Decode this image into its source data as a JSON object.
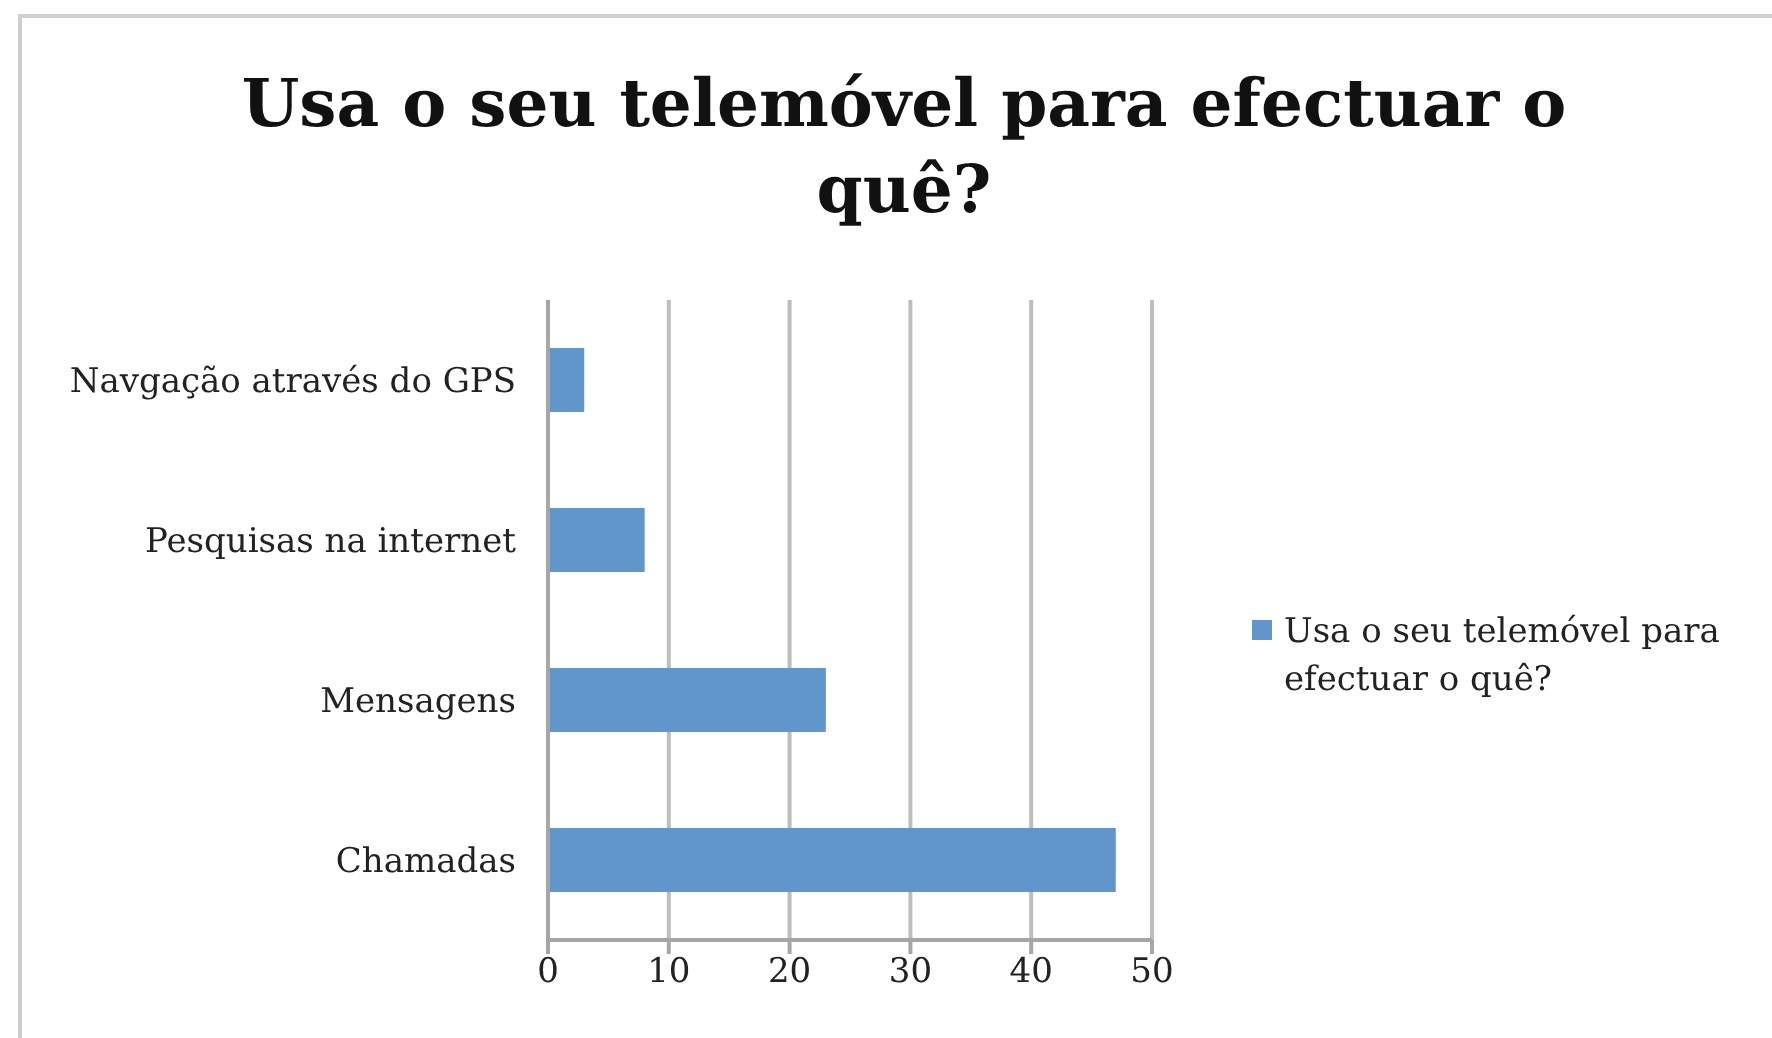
{
  "chart_data": {
    "type": "bar",
    "title": "Usa o seu telemóvel para efectuar o quê?",
    "orientation": "horizontal",
    "categories": [
      "Navgação através do GPS",
      "Pesquisas na internet",
      "Mensagens",
      "Chamadas"
    ],
    "series": [
      {
        "name": "Usa o seu telemóvel para efectuar o quê?",
        "color": "#6096cc",
        "values": [
          3,
          8,
          23,
          47
        ]
      }
    ],
    "xlim": [
      0,
      50
    ],
    "xticks": [
      0,
      10,
      20,
      30,
      40,
      50
    ],
    "grid": "x",
    "legend": "right"
  }
}
